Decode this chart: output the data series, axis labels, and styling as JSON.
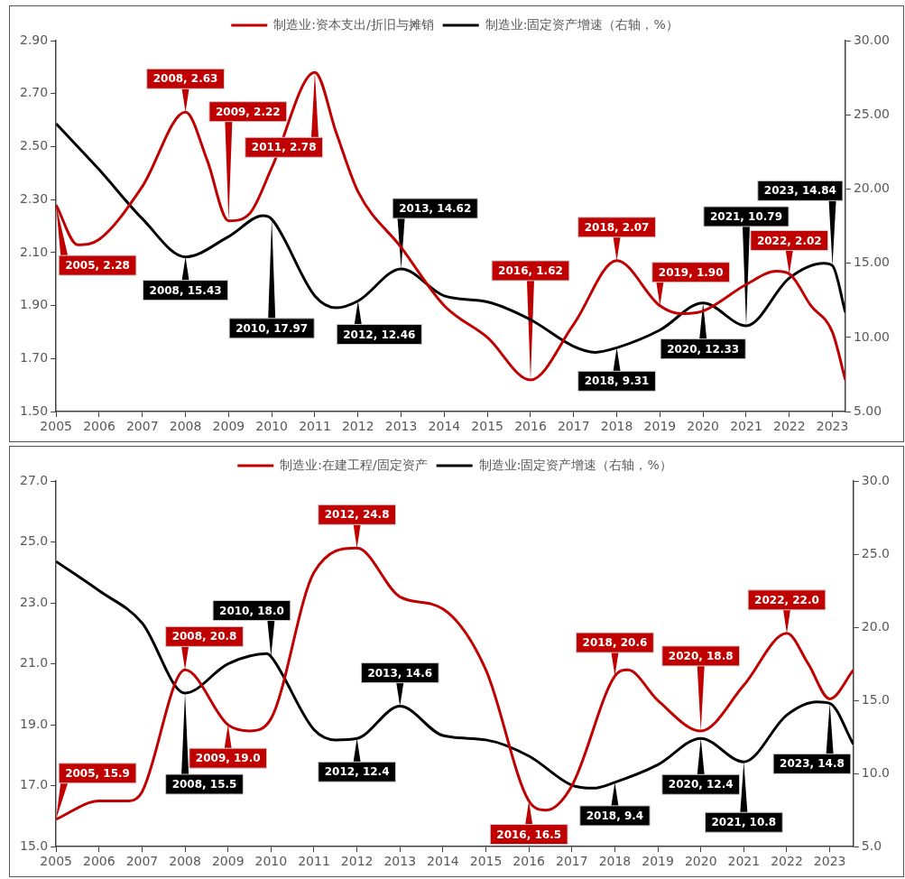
{
  "chart_data": [
    {
      "type": "line",
      "legend": "top",
      "grid": false,
      "xlim": [
        2005,
        2023.3
      ],
      "xticks": [
        2005,
        2006,
        2007,
        2008,
        2009,
        2010,
        2011,
        2012,
        2013,
        2014,
        2015,
        2016,
        2017,
        2018,
        2019,
        2020,
        2021,
        2022,
        2023
      ],
      "ylim": [
        1.5,
        2.9
      ],
      "yticks": [
        {
          "value": 1.5,
          "label": "1.50"
        },
        {
          "value": 1.7,
          "label": "1.70"
        },
        {
          "value": 1.9,
          "label": "1.90"
        },
        {
          "value": 2.1,
          "label": "2.10"
        },
        {
          "value": 2.3,
          "label": "2.30"
        },
        {
          "value": 2.5,
          "label": "2.50"
        },
        {
          "value": 2.7,
          "label": "2.70"
        },
        {
          "value": 2.9,
          "label": "2.90"
        }
      ],
      "y2lim": [
        5,
        30
      ],
      "y2ticks": [
        {
          "value": 5,
          "label": "5.00"
        },
        {
          "value": 10,
          "label": "10.00"
        },
        {
          "value": 15,
          "label": "15.00"
        },
        {
          "value": 20,
          "label": "20.00"
        },
        {
          "value": 25,
          "label": "25.00"
        },
        {
          "value": 30,
          "label": "30.00"
        }
      ],
      "series": [
        {
          "name": "制造业:资本支出/折旧与摊销",
          "color": "#c00000",
          "x": [
            2005,
            2005.5,
            2006,
            2007,
            2008,
            2008.5,
            2009,
            2009.5,
            2010,
            2011,
            2011.5,
            2012,
            2013,
            2014,
            2015,
            2016,
            2017,
            2018,
            2019,
            2019.5,
            2020,
            2021,
            2021.7,
            2022,
            2022.5,
            2023,
            2023.3
          ],
          "values": [
            2.28,
            2.13,
            2.15,
            2.35,
            2.63,
            2.45,
            2.22,
            2.25,
            2.42,
            2.78,
            2.55,
            2.33,
            2.12,
            1.9,
            1.78,
            1.62,
            1.83,
            2.07,
            1.9,
            1.87,
            1.88,
            1.98,
            2.03,
            2.02,
            1.9,
            1.8,
            1.62
          ],
          "value_labels": [
            "2005, 2.28",
            null,
            null,
            null,
            "2008, 2.63",
            null,
            "2009, 2.22",
            null,
            null,
            "2011, 2.78",
            null,
            null,
            null,
            null,
            null,
            "2016, 1.62",
            null,
            "2018, 2.07",
            "2019, 1.90",
            null,
            null,
            null,
            null,
            "2022, 2.02",
            null,
            null,
            null
          ]
        },
        {
          "name": "制造业:固定资产增速（右轴，%）",
          "color": "#000000",
          "axis": "y2",
          "x": [
            2005,
            2006,
            2007,
            2008,
            2009,
            2009.8,
            2010,
            2011,
            2011.5,
            2012,
            2013,
            2014,
            2015,
            2016,
            2017,
            2017.5,
            2018,
            2019,
            2020,
            2021,
            2022,
            2022.8,
            2023,
            2023.3
          ],
          "values": [
            24.4,
            21.3,
            18,
            15.43,
            16.8,
            18.2,
            17.97,
            12.8,
            12,
            12.46,
            14.62,
            12.8,
            12.4,
            11.2,
            9.4,
            9,
            9.31,
            10.5,
            12.33,
            10.79,
            14,
            15,
            14.84,
            11.7
          ],
          "value_labels": [
            null,
            null,
            null,
            "2008, 15.43",
            null,
            null,
            "2010, 17.97",
            null,
            null,
            "2012, 12.46",
            "2013, 14.62",
            null,
            null,
            null,
            null,
            null,
            "2018, 9.31",
            null,
            "2020, 12.33",
            "2021, 10.79",
            null,
            null,
            "2023, 14.84",
            null
          ]
        }
      ]
    },
    {
      "type": "line",
      "legend": "top",
      "grid": false,
      "xlim": [
        2005,
        2023.55
      ],
      "xticks": [
        2005,
        2006,
        2007,
        2008,
        2009,
        2010,
        2011,
        2012,
        2013,
        2014,
        2015,
        2016,
        2017,
        2018,
        2019,
        2020,
        2021,
        2022,
        2023
      ],
      "ylim": [
        15,
        27
      ],
      "yticks": [
        {
          "value": 15,
          "label": "15.0"
        },
        {
          "value": 17,
          "label": "17.0"
        },
        {
          "value": 19,
          "label": "19.0"
        },
        {
          "value": 21,
          "label": "21.0"
        },
        {
          "value": 23,
          "label": "23.0"
        },
        {
          "value": 25,
          "label": "25.0"
        },
        {
          "value": 27,
          "label": "27.0"
        }
      ],
      "y2lim": [
        5,
        30
      ],
      "y2ticks": [
        {
          "value": 5,
          "label": "5.0"
        },
        {
          "value": 10,
          "label": "10.0"
        },
        {
          "value": 15,
          "label": "15.0"
        },
        {
          "value": 20,
          "label": "20.0"
        },
        {
          "value": 25,
          "label": "25.0"
        },
        {
          "value": 30,
          "label": "30.0"
        }
      ],
      "series": [
        {
          "name": "制造业:在建工程/固定资产",
          "color": "#c00000",
          "x": [
            2005,
            2006,
            2006.7,
            2007,
            2008,
            2009,
            2009.5,
            2010,
            2011,
            2012,
            2013,
            2014,
            2015,
            2016,
            2016.4,
            2017,
            2018,
            2018.3,
            2019,
            2020,
            2021,
            2022,
            2022.5,
            2023,
            2023.55
          ],
          "values": [
            15.9,
            16.5,
            16.5,
            16.8,
            20.8,
            19,
            18.8,
            19.2,
            24,
            24.8,
            23.2,
            22.8,
            20.8,
            16.5,
            16.2,
            17,
            20.6,
            20.8,
            19.8,
            18.8,
            20.3,
            22,
            21,
            19.85,
            20.8
          ],
          "value_labels": [
            "2005, 15.9",
            null,
            null,
            null,
            "2008, 20.8",
            "2009, 19.0",
            null,
            null,
            null,
            "2012, 24.8",
            null,
            null,
            null,
            "2016, 16.5",
            null,
            null,
            "2018, 20.6",
            null,
            null,
            "2020, 18.8",
            null,
            "2022, 22.0",
            null,
            null,
            null
          ]
        },
        {
          "name": "制造业:固定资产增速（右轴，%）",
          "color": "#000000",
          "axis": "y2",
          "x": [
            2005,
            2006,
            2007,
            2008,
            2009,
            2009.9,
            2010,
            2011,
            2011.5,
            2012,
            2013,
            2014,
            2015,
            2016,
            2017,
            2017.5,
            2018,
            2019,
            2020,
            2021,
            2022,
            2022.7,
            2023,
            2023.55
          ],
          "values": [
            24.5,
            22.5,
            20.3,
            15.5,
            17.5,
            18.2,
            18,
            13,
            12.3,
            12.4,
            14.6,
            12.6,
            12.3,
            11.2,
            9.2,
            9,
            9.4,
            10.6,
            12.4,
            10.8,
            14,
            14.9,
            14.8,
            12
          ],
          "value_labels": [
            null,
            null,
            null,
            "2008, 15.5",
            null,
            null,
            "2010, 18.0",
            null,
            null,
            "2012, 12.4",
            "2013, 14.6",
            null,
            null,
            null,
            null,
            null,
            "2018, 9.4",
            null,
            "2020, 12.4",
            "2021, 10.8",
            null,
            null,
            "2023, 14.8",
            null
          ]
        }
      ]
    }
  ]
}
